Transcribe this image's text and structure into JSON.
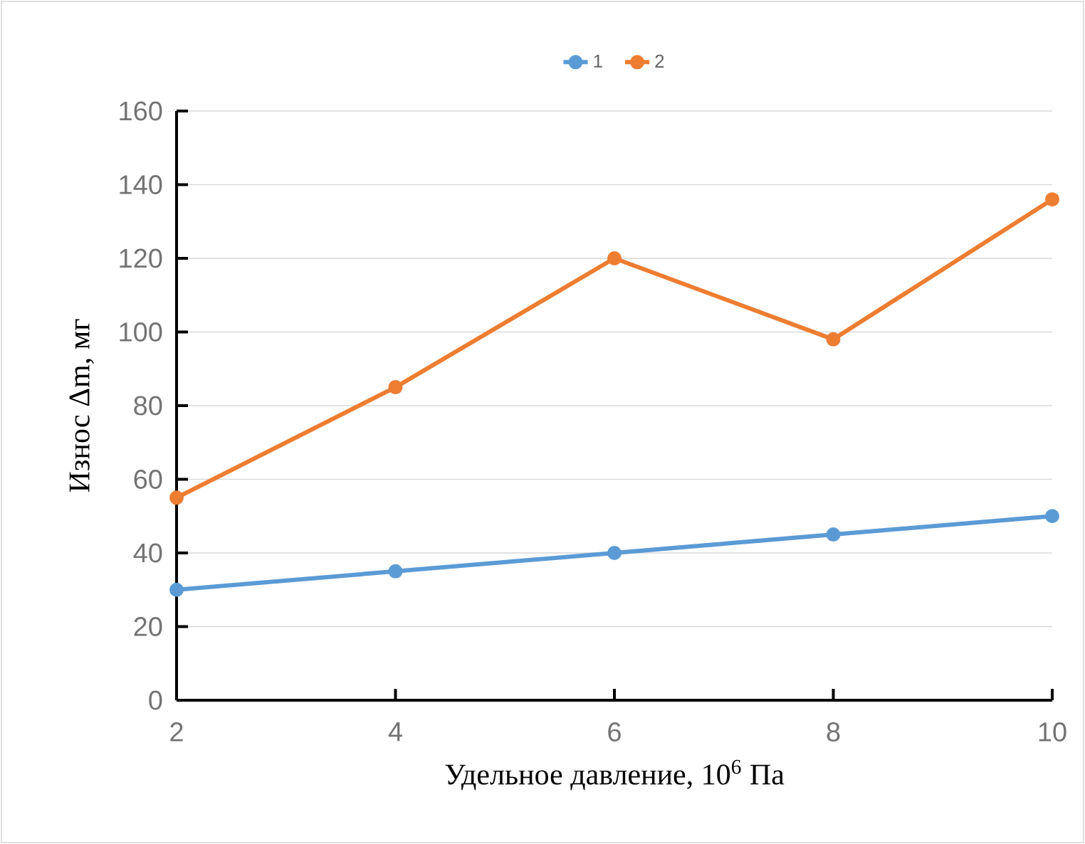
{
  "chart_data": {
    "type": "line",
    "xlabel": "Удельное давление, 10$^{6}$ Па",
    "ylabel": "Износ Δm, мг",
    "x": [
      2,
      4,
      6,
      8,
      10
    ],
    "series": [
      {
        "name": "1",
        "color": "#5b9bd5",
        "values": [
          30,
          35,
          40,
          45,
          50
        ]
      },
      {
        "name": "2",
        "color": "#ed7d31",
        "values": [
          55,
          85,
          120,
          98,
          136
        ]
      }
    ],
    "xlim": [
      2,
      10
    ],
    "xticks": [
      2,
      4,
      6,
      8,
      10
    ],
    "ylim": [
      0,
      160
    ],
    "yticks": [
      0,
      20,
      40,
      60,
      80,
      100,
      120,
      140,
      160
    ],
    "grid": "y",
    "legend": "top",
    "marker": "circle",
    "line_style": "solid"
  }
}
